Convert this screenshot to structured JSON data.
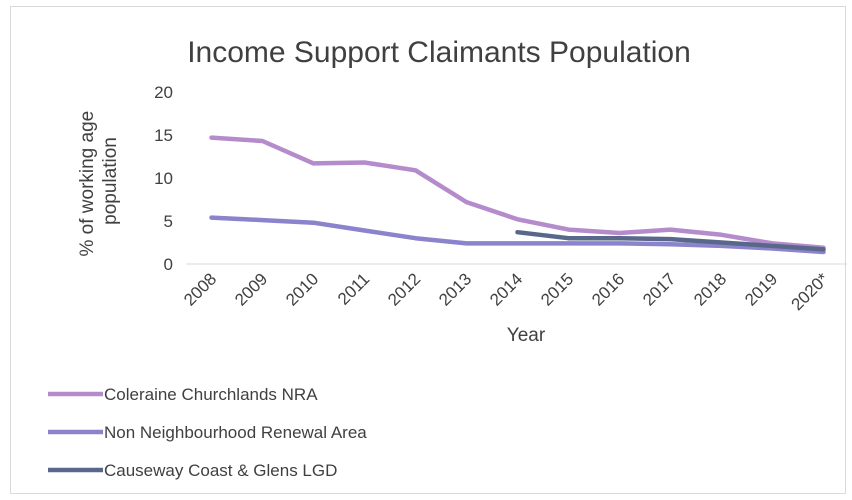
{
  "chart_data": {
    "type": "line",
    "title": "Income Support Claimants Population",
    "xlabel": "Year",
    "ylabel": "% of working age population",
    "ylabel_lines": [
      "% of working age",
      "population"
    ],
    "categories": [
      "2008",
      "2009",
      "2010",
      "2011",
      "2012",
      "2013",
      "2014",
      "2015",
      "2016",
      "2017",
      "2018",
      "2019",
      "2020*"
    ],
    "ylim": [
      0,
      20
    ],
    "yticks": [
      0,
      5,
      10,
      15,
      20
    ],
    "grid": false,
    "legend_position": "bottom-left",
    "series": [
      {
        "name": "Coleraine Churchlands NRA",
        "color": "#b48ccc",
        "values": [
          14.7,
          14.3,
          11.7,
          11.8,
          10.9,
          7.2,
          5.2,
          4.0,
          3.6,
          4.0,
          3.4,
          2.4,
          1.9
        ]
      },
      {
        "name": "Non Neighbourhood Renewal Area",
        "color": "#8b83cc",
        "values": [
          5.4,
          5.1,
          4.8,
          3.9,
          3.0,
          2.4,
          2.4,
          2.4,
          2.4,
          2.3,
          2.1,
          1.8,
          1.4
        ]
      },
      {
        "name": "Causeway Coast & Glens LGD",
        "color": "#59688a",
        "values": [
          null,
          null,
          null,
          null,
          null,
          null,
          3.7,
          3.0,
          3.0,
          2.9,
          2.5,
          2.1,
          1.7
        ]
      }
    ]
  }
}
